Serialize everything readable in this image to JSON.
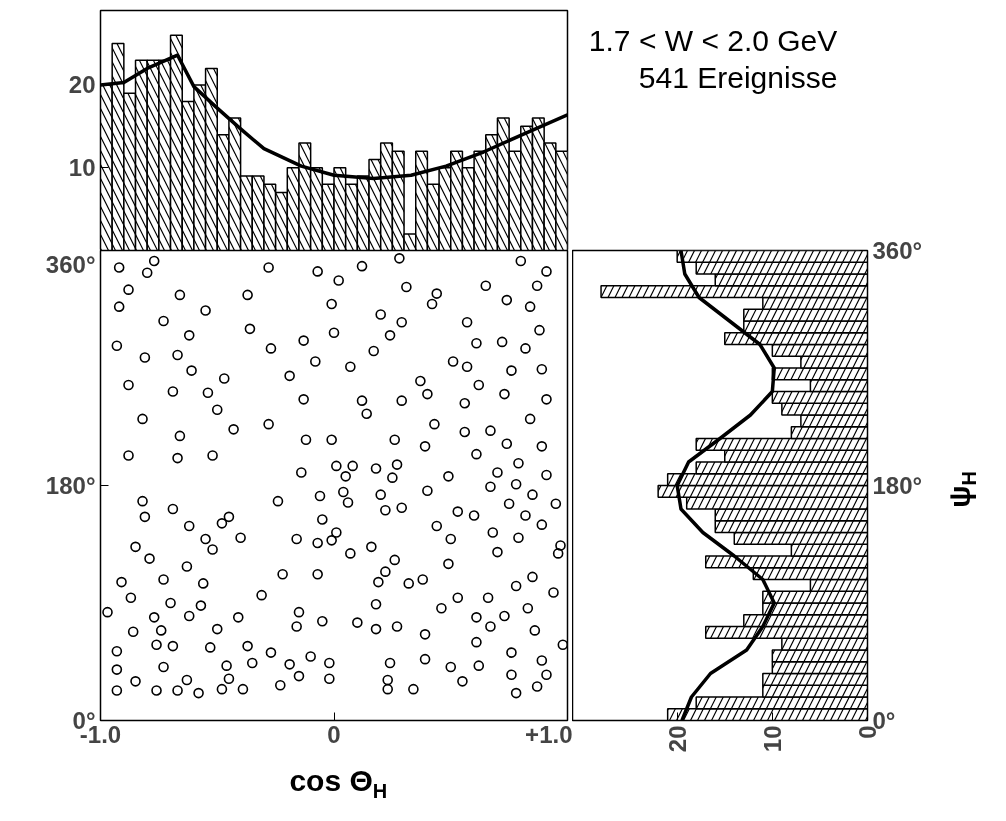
{
  "chart_data": [
    {
      "type": "histogram",
      "tick_labels": "y",
      "xlim": [
        -1,
        1
      ],
      "ylim": [
        0,
        29
      ],
      "yticks": [
        10,
        20
      ],
      "annotations": [
        "1.7 < W < 2.0 GeV",
        "541 Ereignisse"
      ],
      "series": [
        {
          "type": "histogram",
          "color": "#000000",
          "bins": [
            -1,
            -0.95,
            -0.9,
            -0.85,
            -0.8,
            -0.75,
            -0.7,
            -0.65,
            -0.6,
            -0.55,
            -0.5,
            -0.45,
            -0.4,
            -0.35,
            -0.3,
            -0.25,
            -0.2,
            -0.15,
            -0.1,
            -0.05,
            0,
            0.05,
            0.1,
            0.15,
            0.2,
            0.25,
            0.3,
            0.35,
            0.4,
            0.45,
            0.5,
            0.55,
            0.6,
            0.65,
            0.7,
            0.75,
            0.8,
            0.85,
            0.9,
            0.95,
            1
          ],
          "values": [
            20,
            25,
            19,
            23,
            23,
            23,
            26,
            18,
            20,
            22,
            14,
            16,
            9,
            9,
            8,
            7,
            10,
            13,
            10,
            8,
            10,
            8,
            9,
            11,
            13,
            12,
            2,
            12,
            8,
            10,
            12,
            10,
            12,
            14,
            16,
            12,
            15,
            16,
            13,
            12
          ]
        },
        {
          "type": "line",
          "color": "#000000",
          "x": [
            -1,
            -0.9,
            -0.8,
            -0.67,
            -0.6,
            -0.5,
            -0.4,
            -0.3,
            -0.14,
            0,
            0.17,
            0.33,
            0.48,
            0.64,
            0.79,
            1
          ],
          "values": [
            20,
            20.3,
            22,
            23.6,
            19.8,
            17.2,
            14.7,
            12.3,
            10.2,
            9.1,
            8.7,
            9.1,
            10.2,
            11.9,
            13.8,
            16.4
          ]
        }
      ]
    },
    {
      "type": "scatter",
      "xlabel": "cos Θ$_{H}$",
      "marker": "circle",
      "xlim": [
        -1,
        1
      ],
      "ylim": [
        0,
        360
      ],
      "xticks": [
        {
          "value": -1,
          "label": "-1.0"
        },
        0,
        {
          "value": 1,
          "label": "+1.0"
        }
      ],
      "yticks": [
        {
          "value": 0,
          "label": "0°"
        },
        {
          "value": 180,
          "label": "180°"
        },
        {
          "value": 360,
          "label": "360°"
        }
      ],
      "series": [
        {
          "color": "#000000",
          "x": [
            -0.92,
            -0.77,
            -0.8,
            -0.28,
            -0.07,
            -0.88,
            -0.66,
            -0.37,
            -0.92,
            -0.73,
            -0.55,
            -0.36,
            -0.62,
            -0.93,
            -0.81,
            -0.67,
            -0.61,
            -0.47,
            -0.27,
            -0.13,
            -0.08,
            -0.88,
            -0.69,
            -0.54,
            -0.19,
            -0.13,
            -0.82,
            -0.66,
            -0.5,
            -0.43,
            -0.28,
            -0.12,
            -0.88,
            -0.67,
            -0.52,
            0.12,
            0.28,
            0.8,
            0.91,
            0.02,
            0.31,
            0.44,
            0.65,
            0.87,
            -0.01,
            0.2,
            0.42,
            0.74,
            0.84,
            0.29,
            0.57,
            0,
            0.24,
            0.61,
            0.72,
            0.88,
            0.82,
            0.17,
            0.07,
            0.51,
            0.57,
            0.76,
            0.89,
            0.37,
            0.62,
            0.12,
            0.29,
            0.4,
            0.56,
            0.73,
            0.91,
            0.14,
            0.43,
            0.84,
            -0.01,
            0.26,
            0.56,
            0.67,
            0.39,
            0.61,
            0.74,
            0.89,
            0.08,
            0.27,
            0.79,
            -0.82,
            -0.69,
            -0.45,
            -0.24,
            -0.14,
            -0.06,
            -0.81,
            -0.62,
            -0.48,
            -0.85,
            -0.55,
            -0.4,
            -0.16,
            -0.07,
            -0.79,
            -0.63,
            -0.52,
            -0.22,
            -0.07,
            -0.91,
            -0.73,
            -0.56,
            -0.87,
            -0.7,
            -0.57,
            -0.31,
            -0.97,
            -0.77,
            -0.62,
            -0.41,
            -0.15,
            -0.86,
            -0.74,
            -0.5,
            -0.16,
            -0.05,
            -0.93,
            -0.76,
            -0.69,
            -0.53,
            -0.37,
            -0.27,
            -0.1,
            -0.93,
            -0.73,
            -0.46,
            -0.35,
            -0.19,
            -0.85,
            -0.63,
            -0.45,
            -0.23,
            -0.15,
            -0.93,
            -0.76,
            -0.67,
            -0.58,
            -0.48,
            -0.39,
            0.01,
            0.18,
            0.49,
            0.7,
            0.91,
            0.05,
            0.25,
            0.04,
            0.2,
            0.4,
            0.67,
            0.78,
            0.85,
            0.06,
            0.22,
            0.29,
            0.53,
            0.6,
            0.75,
            0.95,
            -0.05,
            0.82,
            0.89,
            0.44,
            0.01,
            0.68,
            0.79,
            -0.01,
            0.5,
            0.97,
            0.07,
            0.16,
            0.26,
            0.7,
            0.96,
            0.49,
            0.22,
            0.19,
            0.32,
            0.38,
            0.85,
            0.78,
            0.94,
            0.53,
            0.66,
            0.18,
            0.46,
            0.83,
            0.73,
            0.1,
            0.18,
            0.27,
            0.61,
            0.67,
            0.86,
            0.39,
            0.61,
            0.98,
            0.76,
            -0.02,
            0.24,
            0.39,
            0.5,
            0.62,
            0.89,
            -0.02,
            0.23,
            0.55,
            0.76,
            0.91,
            0.23,
            0.34,
            0.78,
            0.87
          ],
          "values": [
            347,
            352,
            343,
            347,
            344,
            330,
            326,
            326,
            317,
            306,
            314,
            300,
            295,
            287,
            278,
            280,
            268,
            262,
            285,
            291,
            275,
            257,
            252,
            251,
            264,
            246,
            231,
            218,
            238,
            223,
            227,
            215,
            203,
            201,
            203,
            348,
            354,
            352,
            344,
            337,
            332,
            327,
            333,
            333,
            319,
            311,
            319,
            322,
            317,
            305,
            305,
            297,
            295,
            289,
            290,
            299,
            285,
            283,
            271,
            275,
            271,
            268,
            269,
            260,
            257,
            245,
            245,
            250,
            243,
            250,
            246,
            235,
            227,
            231,
            215,
            215,
            221,
            222,
            210,
            204,
            212,
            210,
            195,
            196,
            197,
            168,
            162,
            156,
            168,
            190,
            172,
            156,
            149,
            151,
            133,
            139,
            140,
            139,
            136,
            124,
            118,
            131,
            112,
            112,
            106,
            108,
            105,
            94,
            90,
            88,
            96,
            83,
            79,
            80,
            79,
            83,
            68,
            69,
            70,
            72,
            76,
            53,
            58,
            57,
            56,
            57,
            52,
            49,
            39,
            41,
            42,
            44,
            43,
            30,
            31,
            32,
            27,
            34,
            23,
            23,
            23,
            21,
            24,
            24,
            195,
            193,
            187,
            190,
            188,
            187,
            186,
            175,
            173,
            176,
            179,
            181,
            173,
            167,
            161,
            163,
            160,
            157,
            166,
            166,
            154,
            157,
            150,
            149,
            144,
            144,
            140,
            138,
            139,
            134,
            128,
            133,
            123,
            129,
            128,
            120,
            114,
            106,
            105,
            108,
            110,
            103,
            98,
            94,
            94,
            89,
            86,
            86,
            80,
            75,
            70,
            72,
            79,
            72,
            69,
            66,
            60,
            58,
            52,
            44,
            44,
            47,
            41,
            42,
            46,
            32,
            31,
            30,
            35,
            35,
            24,
            24,
            21,
            26
          ]
        }
      ]
    },
    {
      "type": "histogram",
      "orientation": "horizontal",
      "ylabel": "ψ$_{H}$",
      "xlim": [
        31,
        0
      ],
      "ylim": [
        0,
        360
      ],
      "xticks": [
        20,
        10,
        0
      ],
      "yticks": [
        {
          "value": 0,
          "label": "0°"
        },
        {
          "value": 180,
          "label": "180°"
        },
        {
          "value": 360,
          "label": "360°"
        }
      ],
      "series": [
        {
          "type": "histogram",
          "color": "#000000",
          "bins": [
            0,
            9,
            18,
            27,
            36,
            45,
            54,
            63,
            72,
            81,
            90,
            99,
            108,
            117,
            126,
            135,
            144,
            153,
            162,
            171,
            180,
            189,
            198,
            207,
            216,
            225,
            234,
            243,
            252,
            261,
            270,
            279,
            288,
            297,
            306,
            315,
            324,
            333,
            342,
            351,
            360
          ],
          "values": [
            21,
            18,
            11,
            11,
            10,
            10,
            9,
            17,
            13,
            11,
            11,
            6,
            12,
            17,
            8,
            14,
            16,
            16,
            19,
            22,
            21,
            18,
            15,
            18,
            8,
            7,
            9,
            10,
            6,
            10,
            7,
            10,
            15,
            13,
            13,
            11,
            28,
            16,
            18,
            20
          ]
        },
        {
          "type": "line",
          "color": "#000000",
          "x": [
            0,
            18,
            36,
            54,
            72,
            90,
            108,
            126,
            144,
            162,
            180,
            198,
            216,
            234,
            252,
            270,
            288,
            306,
            324,
            342,
            360
          ],
          "values": [
            19.5,
            18.5,
            16.5,
            12.7,
            11,
            9.8,
            11,
            14,
            17.3,
            19.6,
            20,
            18.8,
            15.5,
            12.3,
            10,
            9.8,
            11.3,
            14.5,
            17.7,
            19.2,
            19.6
          ]
        }
      ]
    }
  ]
}
